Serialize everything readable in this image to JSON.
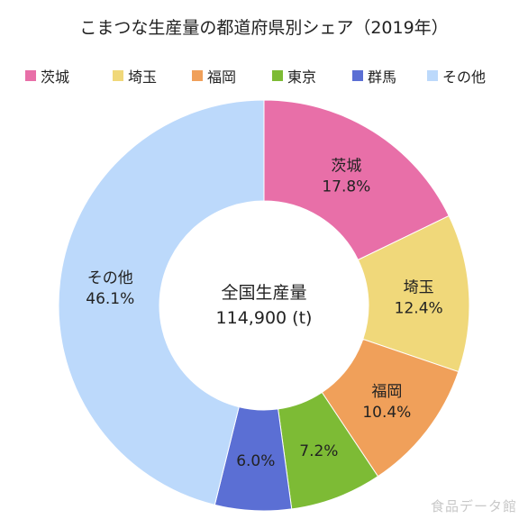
{
  "chart_data": {
    "type": "pie",
    "title": "こまつな生産量の都道府県別シェア（2019年）",
    "categories": [
      "茨城",
      "埼玉",
      "福岡",
      "東京",
      "群馬",
      "その他"
    ],
    "values": [
      17.8,
      12.4,
      10.4,
      7.2,
      6.0,
      46.1
    ],
    "value_labels": [
      "17.8%",
      "12.4%",
      "10.4%",
      "7.2%",
      "6.0%",
      "46.1%"
    ],
    "colors": [
      "#e86fa8",
      "#f0d87a",
      "#f0a05a",
      "#7dbb35",
      "#5b6fd4",
      "#bcd9fb"
    ],
    "legend_position": "top",
    "center_label": "全国生産量",
    "center_value": "114,900 (t)"
  },
  "watermark": "食品データ館"
}
